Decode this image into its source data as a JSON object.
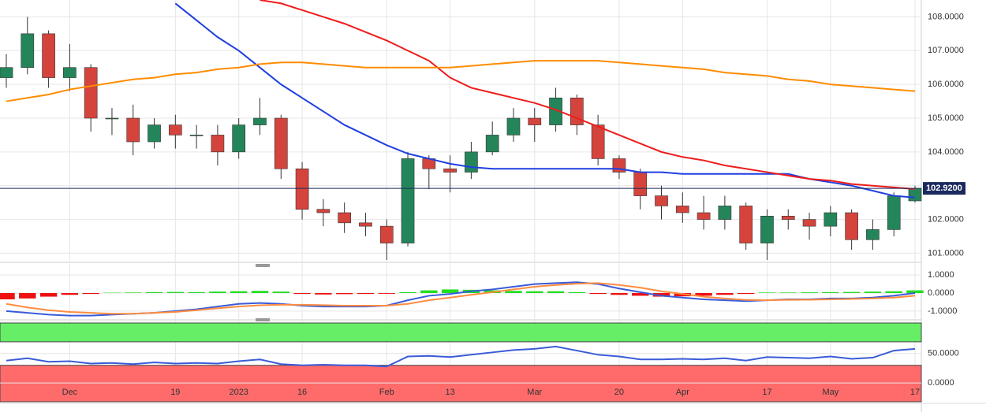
{
  "chart_data": [
    {
      "type": "candlestick",
      "categories": [
        null,
        null,
        null,
        "Dec",
        null,
        null,
        null,
        null,
        "19",
        null,
        null,
        "2023",
        null,
        null,
        "16",
        null,
        null,
        null,
        "Feb",
        null,
        null,
        "13",
        null,
        null,
        null,
        "Mar",
        null,
        null,
        null,
        "20",
        null,
        null,
        "Apr",
        null,
        null,
        null,
        "17",
        null,
        null,
        "May",
        null,
        null,
        null,
        "17"
      ],
      "open": [
        106.2,
        106.5,
        107.5,
        106.2,
        106.5,
        105.0,
        105.0,
        104.3,
        104.8,
        104.5,
        104.5,
        104.0,
        104.8,
        105.0,
        103.5,
        102.3,
        102.2,
        101.9,
        101.8,
        101.3,
        103.8,
        103.5,
        103.4,
        104.0,
        104.5,
        105.0,
        104.8,
        105.6,
        104.8,
        103.8,
        103.4,
        102.7,
        102.4,
        102.2,
        102.0,
        102.4,
        101.3,
        102.1,
        102.0,
        101.8,
        102.2,
        101.4,
        101.7,
        102.55
      ],
      "high": [
        106.9,
        108.0,
        107.6,
        107.2,
        106.6,
        105.3,
        105.4,
        105.0,
        105.1,
        104.8,
        104.8,
        105.0,
        105.6,
        105.1,
        103.7,
        102.6,
        102.5,
        102.2,
        102.0,
        104.0,
        103.9,
        103.9,
        104.3,
        104.9,
        105.3,
        105.3,
        105.9,
        105.7,
        105.1,
        103.9,
        103.5,
        103.0,
        102.8,
        102.7,
        102.7,
        102.5,
        102.3,
        102.3,
        102.2,
        102.4,
        102.3,
        102.0,
        102.8,
        103.0
      ],
      "low": [
        105.9,
        106.3,
        105.9,
        105.8,
        104.6,
        104.5,
        103.9,
        104.1,
        104.1,
        104.1,
        103.6,
        103.8,
        104.5,
        103.2,
        102.0,
        101.8,
        101.6,
        101.5,
        100.8,
        101.2,
        102.9,
        102.8,
        103.2,
        103.9,
        104.3,
        104.3,
        104.6,
        104.5,
        103.6,
        103.2,
        102.3,
        102.0,
        101.9,
        101.7,
        101.7,
        101.1,
        100.8,
        101.7,
        101.4,
        101.5,
        101.1,
        101.1,
        101.5,
        102.5
      ],
      "close": [
        106.5,
        107.5,
        106.2,
        106.5,
        105.0,
        105.0,
        104.3,
        104.8,
        104.5,
        104.5,
        104.0,
        104.8,
        105.0,
        103.5,
        102.3,
        102.2,
        101.9,
        101.8,
        101.3,
        103.8,
        103.5,
        103.4,
        104.0,
        104.5,
        105.0,
        104.8,
        105.6,
        104.8,
        103.8,
        103.4,
        102.7,
        102.4,
        102.2,
        102.0,
        102.4,
        101.3,
        102.1,
        102.0,
        101.8,
        102.2,
        101.4,
        101.7,
        102.7,
        102.92
      ],
      "up_color": "#24855a",
      "down_color": "#d4443c",
      "series": [
        {
          "color": "#1f3fe0",
          "values": [
            null,
            null,
            null,
            null,
            null,
            null,
            null,
            null,
            108.4,
            107.9,
            107.4,
            107.0,
            106.5,
            106.0,
            105.6,
            105.2,
            104.8,
            104.5,
            104.2,
            103.95,
            103.8,
            103.65,
            103.55,
            103.5,
            103.5,
            103.5,
            103.5,
            103.5,
            103.5,
            103.5,
            103.4,
            103.4,
            103.35,
            103.35,
            103.35,
            103.35,
            103.35,
            103.35,
            103.2,
            103.1,
            103.0,
            102.85,
            102.7,
            102.65
          ]
        },
        {
          "color": "#ee1c1c",
          "values": [
            null,
            null,
            null,
            null,
            null,
            null,
            null,
            null,
            null,
            null,
            null,
            null,
            108.5,
            108.4,
            108.2,
            108.0,
            107.8,
            107.55,
            107.3,
            107.0,
            106.7,
            106.2,
            105.9,
            105.75,
            105.6,
            105.45,
            105.25,
            105.0,
            104.75,
            104.5,
            104.25,
            104.0,
            103.85,
            103.75,
            103.6,
            103.5,
            103.4,
            103.3,
            103.2,
            103.15,
            103.05,
            103.0,
            102.95,
            102.9
          ]
        },
        {
          "color": "#ff8c00",
          "values": [
            105.5,
            105.6,
            105.7,
            105.85,
            105.95,
            106.05,
            106.15,
            106.2,
            106.3,
            106.35,
            106.45,
            106.5,
            106.6,
            106.65,
            106.65,
            106.6,
            106.55,
            106.5,
            106.5,
            106.5,
            106.5,
            106.5,
            106.55,
            106.6,
            106.65,
            106.7,
            106.7,
            106.7,
            106.7,
            106.65,
            106.6,
            106.55,
            106.5,
            106.45,
            106.35,
            106.3,
            106.25,
            106.15,
            106.1,
            106.0,
            105.95,
            105.9,
            105.85,
            105.8
          ]
        }
      ],
      "last_price": {
        "value": 102.92,
        "label": "102.9200"
      },
      "ylim": [
        100.8,
        108.5
      ],
      "yticks": [
        {
          "value": 101,
          "label": "101.0000"
        },
        {
          "value": 102,
          "label": "102.0000"
        },
        {
          "value": 103,
          "label": "103.0000"
        },
        {
          "value": 104,
          "label": "104.0000"
        },
        {
          "value": 105,
          "label": "105.0000"
        },
        {
          "value": 106,
          "label": "106.0000"
        },
        {
          "value": 107,
          "label": "107.0000"
        },
        {
          "value": 108,
          "label": "108.0000"
        }
      ]
    },
    {
      "type": "macd",
      "histogram": [
        -0.35,
        -0.3,
        -0.2,
        -0.1,
        -0.05,
        0.02,
        0.03,
        0.05,
        0.06,
        0.05,
        0.08,
        0.1,
        0.12,
        0.08,
        -0.05,
        -0.08,
        -0.06,
        -0.05,
        -0.04,
        0.05,
        0.15,
        0.2,
        0.18,
        0.15,
        0.12,
        0.1,
        0.1,
        0.05,
        -0.05,
        -0.1,
        -0.15,
        -0.2,
        -0.18,
        -0.15,
        -0.1,
        -0.05,
        0.03,
        0.03,
        0.04,
        0.05,
        0.06,
        0.08,
        0.1,
        0.15
      ],
      "up_color": "#22dd22",
      "down_color": "#ee1111",
      "series": [
        {
          "color": "#3a5bd9",
          "values": [
            -1.0,
            -1.1,
            -1.2,
            -1.25,
            -1.25,
            -1.2,
            -1.15,
            -1.1,
            -1.0,
            -0.9,
            -0.75,
            -0.6,
            -0.55,
            -0.6,
            -0.7,
            -0.75,
            -0.75,
            -0.75,
            -0.7,
            -0.4,
            -0.15,
            -0.05,
            0.1,
            0.2,
            0.35,
            0.5,
            0.55,
            0.6,
            0.5,
            0.25,
            0.05,
            -0.15,
            -0.25,
            -0.35,
            -0.4,
            -0.45,
            -0.4,
            -0.35,
            -0.35,
            -0.3,
            -0.3,
            -0.25,
            -0.15,
            0.0
          ]
        },
        {
          "color": "#ff8c40",
          "values": [
            -0.6,
            -0.8,
            -0.95,
            -1.05,
            -1.1,
            -1.15,
            -1.15,
            -1.1,
            -1.05,
            -0.95,
            -0.85,
            -0.75,
            -0.68,
            -0.65,
            -0.65,
            -0.67,
            -0.7,
            -0.7,
            -0.7,
            -0.6,
            -0.4,
            -0.25,
            -0.1,
            0.05,
            0.2,
            0.35,
            0.45,
            0.52,
            0.55,
            0.45,
            0.3,
            0.1,
            -0.05,
            -0.2,
            -0.3,
            -0.38,
            -0.4,
            -0.38,
            -0.37,
            -0.35,
            -0.33,
            -0.3,
            -0.25,
            -0.15
          ]
        }
      ],
      "ylim": [
        -1.4,
        1.4
      ],
      "yticks": [
        {
          "value": -1,
          "label": "-1.0000"
        },
        {
          "value": 0,
          "label": "0.0000"
        },
        {
          "value": 1,
          "label": "1.0000"
        }
      ]
    },
    {
      "type": "rsi",
      "series": [
        {
          "color": "#3a5bd9",
          "values": [
            38,
            42,
            36,
            37,
            33,
            34,
            32,
            35,
            33,
            34,
            33,
            37,
            40,
            32,
            30,
            31,
            30,
            30,
            28,
            45,
            46,
            44,
            48,
            52,
            56,
            58,
            62,
            55,
            48,
            45,
            40,
            40,
            41,
            40,
            42,
            38,
            44,
            43,
            42,
            45,
            41,
            43,
            55,
            58
          ]
        }
      ],
      "upper_band": 70,
      "lower_band": 30,
      "upper_color": "#66ee66",
      "lower_color": "#ff6b6b",
      "ylim": [
        -32,
        102
      ],
      "yticks": [
        {
          "value": 0,
          "label": "0.0000"
        },
        {
          "value": 50,
          "label": "50.0000"
        }
      ]
    }
  ]
}
